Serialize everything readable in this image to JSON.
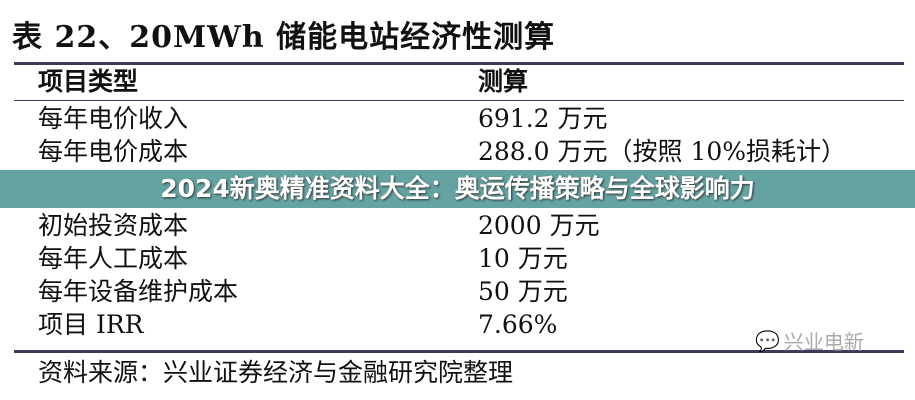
{
  "title": "表 22、20MWh 储能电站经济性测算",
  "table": {
    "headers": [
      "项目类型",
      "测算"
    ],
    "rows": [
      [
        "每年电价收入",
        "691.2 万元"
      ],
      [
        "每年电价成本",
        "288.0 万元（按照 10%损耗计）"
      ],
      [
        "初始投资成本",
        "2000 万元"
      ],
      [
        "每年人工成本",
        "10 万元"
      ],
      [
        "每年设备维护成本",
        "50 万元"
      ],
      [
        "项目 IRR",
        "7.66%"
      ]
    ]
  },
  "source": "资料来源：兴业证券经济与金融研究院整理",
  "watermark": "兴业电新",
  "banner": {
    "text": "2024新奥精准资料大全：奥运传播策略与全球影响力",
    "color": "#5a9ea0"
  }
}
